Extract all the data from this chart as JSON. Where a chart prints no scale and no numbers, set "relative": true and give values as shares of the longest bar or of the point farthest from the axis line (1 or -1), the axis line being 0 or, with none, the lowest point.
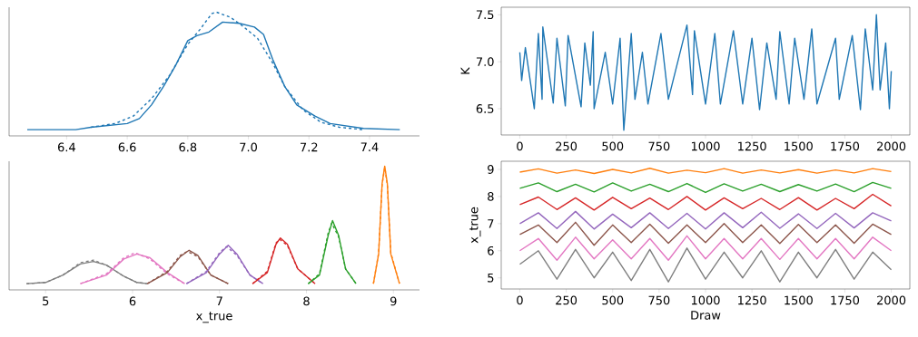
{
  "chart_data": [
    {
      "type": "line",
      "relative": true,
      "tick_labels": "x",
      "xlim": [
        6.21,
        7.565
      ],
      "xticks": [
        6.4,
        6.6,
        6.8,
        {
          "value": 7.0,
          "label": "7.0"
        },
        7.2,
        7.4
      ],
      "series": [
        {
          "color": "#1f77b4",
          "line_style": "solid",
          "x": [
            6.27,
            6.43,
            6.48,
            6.6,
            6.64,
            6.68,
            6.72,
            6.76,
            6.8,
            6.83,
            6.87,
            6.915,
            6.97,
            7.02,
            7.05,
            7.08,
            7.12,
            7.16,
            7.22,
            7.27,
            7.38,
            7.5
          ],
          "values": [
            0.05,
            0.05,
            0.07,
            0.1,
            0.14,
            0.25,
            0.4,
            0.57,
            0.77,
            0.81,
            0.84,
            0.92,
            0.91,
            0.88,
            0.82,
            0.62,
            0.4,
            0.25,
            0.16,
            0.1,
            0.06,
            0.05
          ]
        },
        {
          "color": "#1f77b4",
          "line_style": "dashed",
          "x": [
            6.48,
            6.56,
            6.62,
            6.68,
            6.74,
            6.8,
            6.84,
            6.88,
            6.895,
            6.94,
            6.98,
            7.03,
            7.08,
            7.12,
            7.18,
            7.24,
            7.3,
            7.38
          ],
          "values": [
            0.07,
            0.1,
            0.16,
            0.3,
            0.49,
            0.74,
            0.86,
            0.99,
            1.0,
            0.96,
            0.89,
            0.79,
            0.59,
            0.4,
            0.21,
            0.11,
            0.07,
            0.05
          ]
        }
      ]
    },
    {
      "type": "line",
      "relative": true,
      "tick_labels": "x",
      "xlabel": "x_true",
      "xlim": [
        4.58,
        9.3
      ],
      "xticks": [
        5,
        6,
        7,
        8,
        9
      ],
      "series": [
        {
          "color": "#7f7f7f",
          "line_style": "solid",
          "x": [
            4.78,
            5.0,
            5.2,
            5.4,
            5.55,
            5.7,
            5.9,
            6.05,
            6.17
          ],
          "values": [
            0.05,
            0.06,
            0.12,
            0.21,
            0.23,
            0.2,
            0.11,
            0.06,
            0.05
          ]
        },
        {
          "color": "#7f7f7f",
          "line_style": "dashed",
          "x": [
            4.78,
            5.0,
            5.2,
            5.4,
            5.55,
            5.7,
            5.9,
            6.05,
            6.17
          ],
          "values": [
            0.05,
            0.06,
            0.12,
            0.22,
            0.24,
            0.2,
            0.11,
            0.06,
            0.05
          ]
        },
        {
          "color": "#e377c2",
          "line_style": "solid",
          "x": [
            5.4,
            5.7,
            5.9,
            6.05,
            6.2,
            6.4,
            6.6
          ],
          "values": [
            0.05,
            0.12,
            0.25,
            0.29,
            0.26,
            0.14,
            0.05
          ]
        },
        {
          "color": "#e377c2",
          "line_style": "dashed",
          "x": [
            5.4,
            5.7,
            5.9,
            6.03,
            6.2,
            6.4,
            6.6
          ],
          "values": [
            0.05,
            0.13,
            0.26,
            0.3,
            0.25,
            0.13,
            0.05
          ]
        },
        {
          "color": "#8c564b",
          "line_style": "solid",
          "x": [
            6.17,
            6.4,
            6.55,
            6.65,
            6.75,
            6.9,
            7.1
          ],
          "values": [
            0.05,
            0.14,
            0.27,
            0.32,
            0.28,
            0.12,
            0.05
          ]
        },
        {
          "color": "#8c564b",
          "line_style": "dashed",
          "x": [
            6.17,
            6.4,
            6.55,
            6.63,
            6.75,
            6.9,
            7.1
          ],
          "values": [
            0.05,
            0.15,
            0.28,
            0.31,
            0.27,
            0.12,
            0.05
          ]
        },
        {
          "color": "#9467bd",
          "line_style": "solid",
          "x": [
            6.62,
            6.85,
            7.0,
            7.1,
            7.2,
            7.35,
            7.5
          ],
          "values": [
            0.05,
            0.14,
            0.29,
            0.36,
            0.29,
            0.12,
            0.05
          ]
        },
        {
          "color": "#9467bd",
          "line_style": "dashed",
          "x": [
            6.62,
            6.85,
            7.0,
            7.08,
            7.2,
            7.35,
            7.5
          ],
          "values": [
            0.05,
            0.15,
            0.3,
            0.35,
            0.28,
            0.12,
            0.05
          ]
        },
        {
          "color": "#d62728",
          "line_style": "solid",
          "x": [
            7.38,
            7.55,
            7.65,
            7.7,
            7.78,
            7.9,
            8.1
          ],
          "values": [
            0.05,
            0.14,
            0.37,
            0.42,
            0.37,
            0.17,
            0.05
          ]
        },
        {
          "color": "#d62728",
          "line_style": "dashed",
          "x": [
            7.38,
            7.55,
            7.65,
            7.69,
            7.78,
            7.9,
            8.1
          ],
          "values": [
            0.05,
            0.15,
            0.38,
            0.41,
            0.36,
            0.17,
            0.05
          ]
        },
        {
          "color": "#2ca02c",
          "line_style": "solid",
          "x": [
            8.02,
            8.15,
            8.25,
            8.3,
            8.37,
            8.45,
            8.57
          ],
          "values": [
            0.05,
            0.12,
            0.44,
            0.56,
            0.44,
            0.17,
            0.05
          ]
        },
        {
          "color": "#2ca02c",
          "line_style": "dashed",
          "x": [
            8.02,
            8.15,
            8.25,
            8.29,
            8.37,
            8.45,
            8.57
          ],
          "values": [
            0.05,
            0.13,
            0.46,
            0.54,
            0.43,
            0.17,
            0.05
          ]
        },
        {
          "color": "#ff7f0e",
          "line_style": "solid",
          "x": [
            8.77,
            8.83,
            8.87,
            8.9,
            8.93,
            8.97,
            9.07
          ],
          "values": [
            0.05,
            0.29,
            0.86,
            1.0,
            0.86,
            0.29,
            0.05
          ]
        },
        {
          "color": "#ff7f0e",
          "line_style": "dashed",
          "x": [
            8.77,
            8.83,
            8.87,
            8.9,
            8.93,
            8.97,
            9.07
          ],
          "values": [
            0.05,
            0.3,
            0.85,
            0.99,
            0.85,
            0.3,
            0.05
          ]
        }
      ]
    },
    {
      "type": "line",
      "ylabel": "K",
      "xlim": [
        -100,
        2100
      ],
      "xticks": [
        0,
        250,
        500,
        750,
        1000,
        1250,
        1500,
        1750,
        2000
      ],
      "ylim": [
        6.22,
        7.58
      ],
      "yticks": [
        6.5,
        {
          "value": 7.0,
          "label": "7.0"
        },
        7.5
      ],
      "series": [
        {
          "color": "#1f77b4",
          "x": [
            0,
            10,
            30,
            78,
            100,
            120,
            124,
            180,
            200,
            245,
            260,
            330,
            350,
            380,
            395,
            400,
            460,
            500,
            540,
            560,
            600,
            620,
            660,
            690,
            760,
            800,
            900,
            930,
            940,
            1000,
            1050,
            1080,
            1150,
            1200,
            1250,
            1291,
            1330,
            1380,
            1400,
            1450,
            1480,
            1530,
            1572,
            1600,
            1700,
            1720,
            1790,
            1834,
            1860,
            1900,
            1920,
            1940,
            1970,
            1990,
            2000
          ],
          "values": [
            7.1,
            6.8,
            7.15,
            6.5,
            7.3,
            6.6,
            7.37,
            6.56,
            7.25,
            6.53,
            7.28,
            6.52,
            7.2,
            6.75,
            7.32,
            6.5,
            7.1,
            6.55,
            7.25,
            6.27,
            7.3,
            6.6,
            7.1,
            6.55,
            7.3,
            6.6,
            7.39,
            6.65,
            7.33,
            6.55,
            7.3,
            6.55,
            7.33,
            6.55,
            7.25,
            6.49,
            7.2,
            6.6,
            7.32,
            6.55,
            7.25,
            6.6,
            7.35,
            6.55,
            7.25,
            6.6,
            7.28,
            6.49,
            7.35,
            6.7,
            7.5,
            6.7,
            7.2,
            6.5,
            6.9
          ]
        }
      ]
    },
    {
      "type": "line",
      "xlabel": "Draw",
      "ylabel": "x_true",
      "xlim": [
        -100,
        2100
      ],
      "xticks": [
        0,
        250,
        500,
        750,
        1000,
        1250,
        1500,
        1750,
        2000
      ],
      "ylim": [
        4.59,
        9.3
      ],
      "yticks": [
        5,
        6,
        7,
        8,
        9
      ],
      "x": [
        0,
        100,
        200,
        300,
        400,
        500,
        600,
        700,
        800,
        900,
        1000,
        1100,
        1200,
        1300,
        1400,
        1500,
        1600,
        1700,
        1800,
        1900,
        2000
      ],
      "series": [
        {
          "color": "#ff7f0e",
          "values": [
            8.9,
            9.02,
            8.86,
            8.98,
            8.85,
            9.0,
            8.87,
            9.04,
            8.86,
            8.97,
            8.88,
            9.03,
            8.86,
            8.98,
            8.87,
            8.99,
            8.86,
            8.98,
            8.87,
            9.03,
            8.92
          ]
        },
        {
          "color": "#2ca02c",
          "values": [
            8.3,
            8.5,
            8.18,
            8.45,
            8.17,
            8.5,
            8.2,
            8.45,
            8.18,
            8.48,
            8.15,
            8.47,
            8.2,
            8.45,
            8.18,
            8.44,
            8.2,
            8.46,
            8.18,
            8.52,
            8.3
          ]
        },
        {
          "color": "#d62728",
          "values": [
            7.7,
            7.98,
            7.52,
            7.95,
            7.5,
            7.97,
            7.55,
            7.94,
            7.52,
            8.0,
            7.5,
            7.95,
            7.55,
            7.93,
            7.52,
            7.96,
            7.5,
            7.93,
            7.55,
            8.08,
            7.65
          ]
        },
        {
          "color": "#9467bd",
          "values": [
            7.0,
            7.4,
            6.82,
            7.45,
            6.8,
            7.35,
            6.85,
            7.4,
            6.82,
            7.38,
            6.8,
            7.4,
            6.85,
            7.42,
            6.83,
            7.36,
            6.82,
            7.38,
            6.84,
            7.4,
            7.1
          ]
        },
        {
          "color": "#8c564b",
          "values": [
            6.6,
            6.95,
            6.3,
            7.05,
            6.2,
            6.95,
            6.3,
            6.98,
            6.28,
            6.95,
            6.3,
            7.0,
            6.3,
            6.95,
            6.27,
            6.97,
            6.3,
            6.95,
            6.28,
            6.98,
            6.6
          ]
        },
        {
          "color": "#e377c2",
          "values": [
            6.0,
            6.45,
            5.65,
            6.5,
            5.7,
            6.4,
            5.7,
            6.45,
            5.65,
            6.55,
            5.7,
            6.45,
            5.7,
            6.45,
            5.68,
            6.45,
            5.7,
            6.45,
            5.7,
            6.5,
            6.0
          ]
        },
        {
          "color": "#7f7f7f",
          "values": [
            5.5,
            6.0,
            4.95,
            6.05,
            5.0,
            5.95,
            4.9,
            6.05,
            4.85,
            6.1,
            4.95,
            5.95,
            5.0,
            6.0,
            4.85,
            5.95,
            5.0,
            6.05,
            4.95,
            5.95,
            5.3
          ]
        }
      ]
    }
  ]
}
